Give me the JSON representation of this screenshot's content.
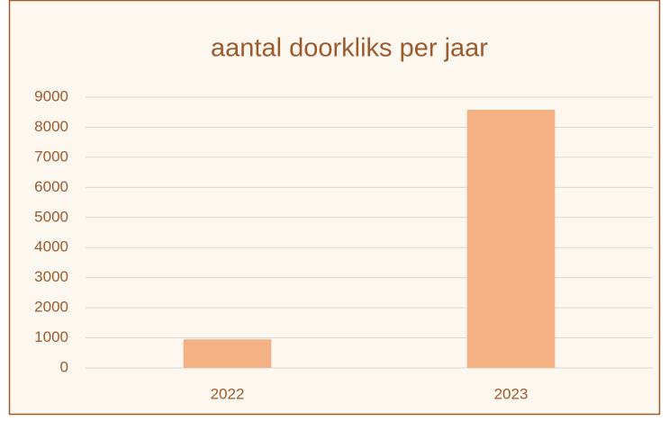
{
  "chart_data": {
    "type": "bar",
    "title": "aantal doorkliks per jaar",
    "categories": [
      "2022",
      "2023"
    ],
    "values": [
      950,
      8580
    ],
    "color": "#f4b183",
    "ylim": [
      0,
      9000
    ],
    "yticks": [
      0,
      1000,
      2000,
      3000,
      4000,
      5000,
      6000,
      7000,
      8000,
      9000
    ],
    "grid": true
  }
}
